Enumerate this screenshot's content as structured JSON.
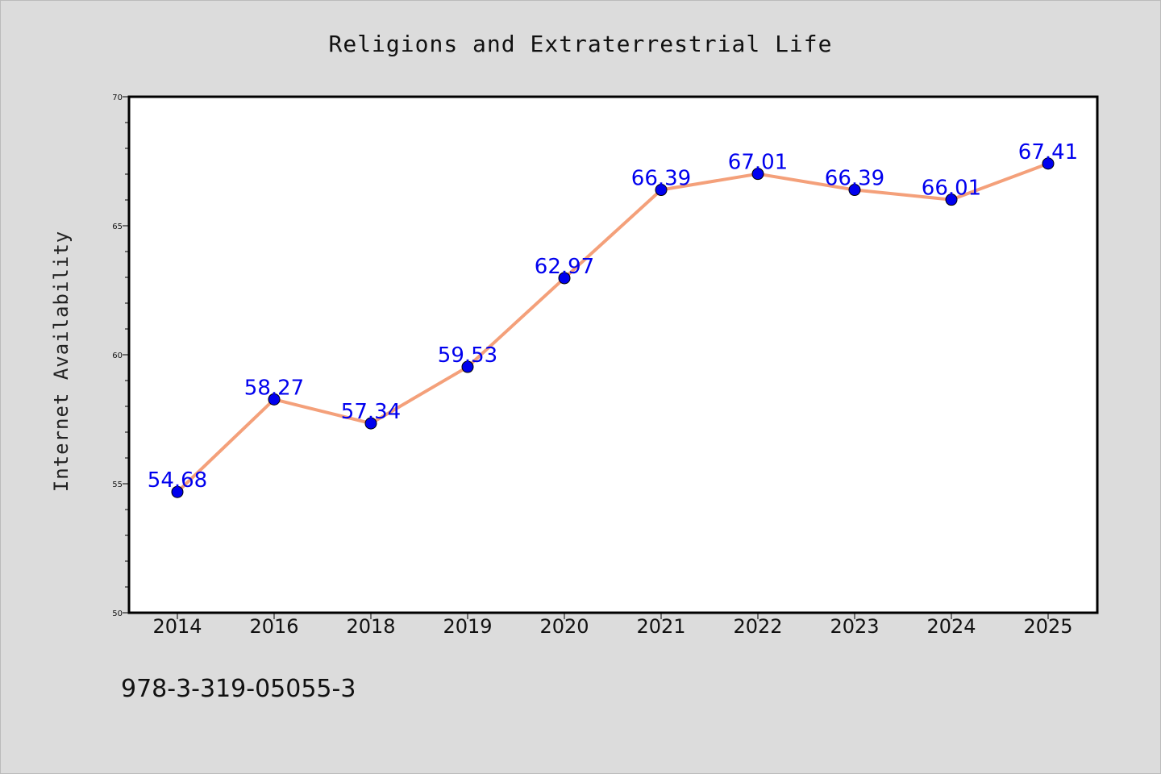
{
  "chart_data": {
    "type": "line",
    "title": "Religions and Extraterrestrial Life",
    "xlabel": "",
    "ylabel": "Internet Availability",
    "categories": [
      "2014",
      "2016",
      "2018",
      "2019",
      "2020",
      "2021",
      "2022",
      "2023",
      "2024",
      "2025"
    ],
    "series": [
      {
        "values": [
          54.68,
          58.27,
          57.34,
          59.53,
          62.97,
          66.39,
          67.01,
          66.39,
          66.01,
          67.41
        ],
        "labels": [
          "54.68",
          "58.27",
          "57.34",
          "59.53",
          "62.97",
          "66.39",
          "67.01",
          "66.39",
          "66.01",
          "67.41"
        ]
      }
    ],
    "ylim": [
      50,
      70
    ],
    "yticks": [
      50,
      55,
      60,
      65,
      70
    ],
    "yticklabels": [
      "50",
      "55",
      "60",
      "65",
      "70"
    ],
    "grid": false,
    "legend": "none",
    "colors": {
      "line": "#f4a07a",
      "marker": "#0000ee",
      "label": "#0000ee",
      "frame": "#000000",
      "plot_bg": "#ffffff",
      "page_bg": "#dcdcdc"
    }
  },
  "footnote": "978-3-319-05055-3"
}
